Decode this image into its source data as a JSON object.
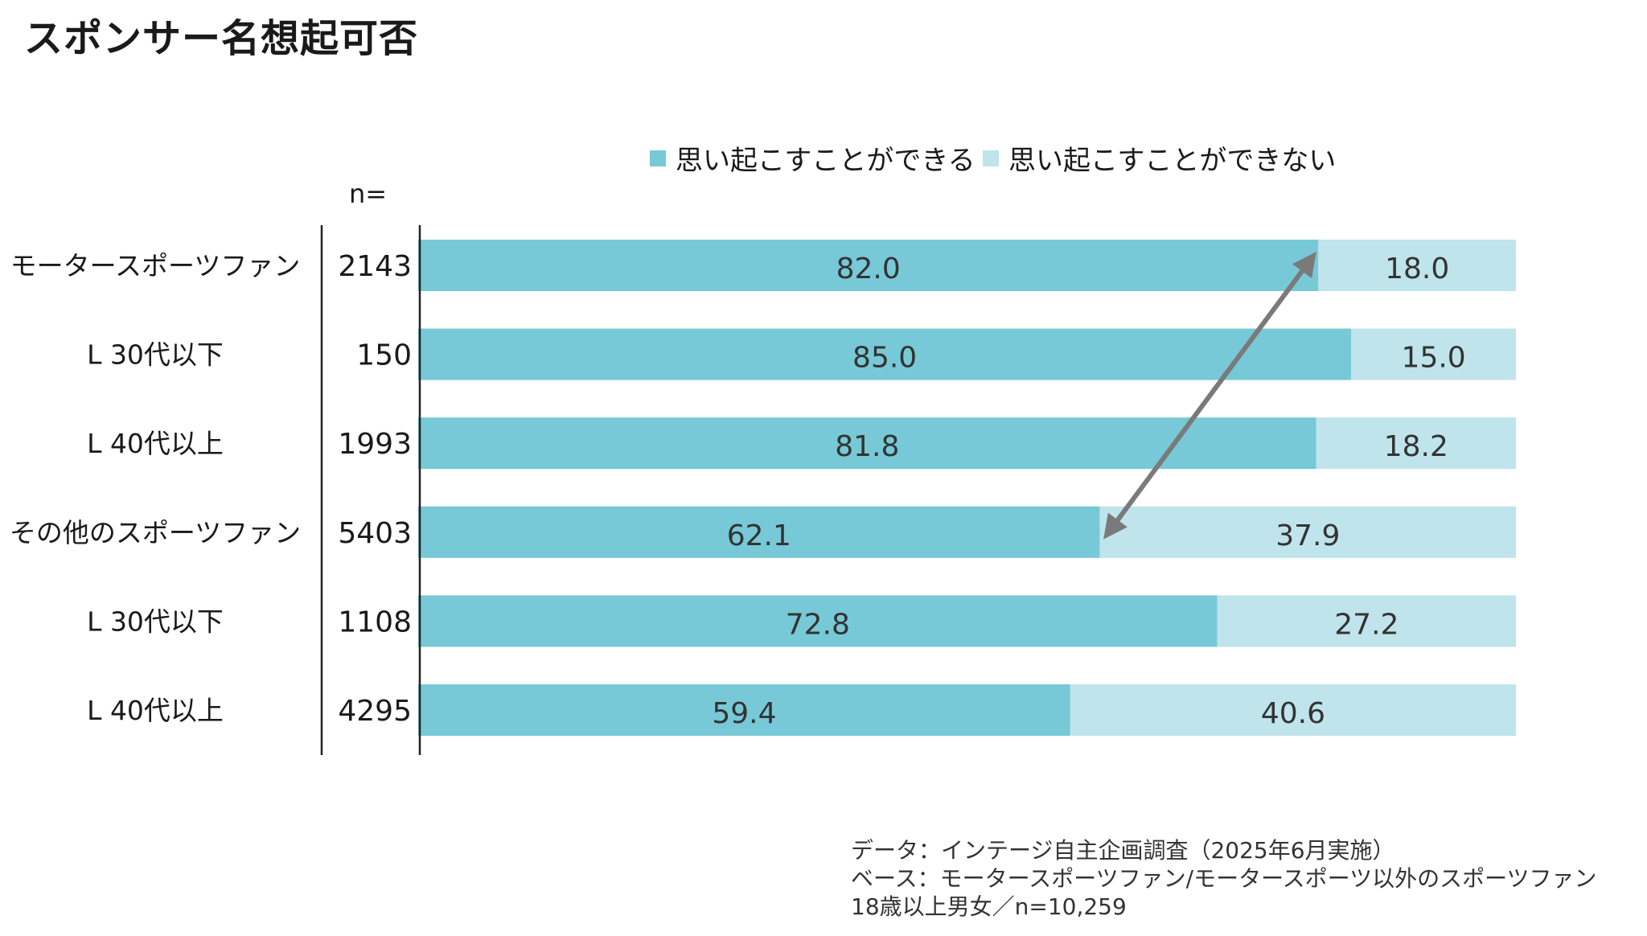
{
  "title": "スポンサー名想起可否",
  "n_header": "n=",
  "footnote": {
    "line1": "データ：インテージ自主企画調査（2025年6月実施）",
    "line2": "ベース：モータースポーツファン/モータースポーツ以外のスポーツファン",
    "line3": "18歳以上男女／n=10,259"
  },
  "colors": {
    "can_recall": "#77c9d7",
    "cannot_recall": "#bfe4eb",
    "arrow": "#7a7a7a"
  },
  "chart_data": {
    "type": "bar",
    "orientation": "horizontal",
    "stacked": true,
    "percent": true,
    "xlim": [
      0,
      100
    ],
    "legend_position": "top",
    "categories": [
      "モータースポーツファン",
      "L 30代以下",
      "L 40代以上",
      "その他のスポーツファン",
      "L 30代以下",
      "L 40代以上"
    ],
    "n": [
      "2143",
      "150",
      "1993",
      "5403",
      "1108",
      "4295"
    ],
    "series": [
      {
        "name": "思い起こすことができる",
        "values": [
          82.0,
          85.0,
          81.8,
          62.1,
          72.8,
          59.4
        ],
        "labels": [
          "82.0",
          "85.0",
          "81.8",
          "62.1",
          "72.8",
          "59.4"
        ]
      },
      {
        "name": "思い起こすことができない",
        "values": [
          18.0,
          15.0,
          18.2,
          37.9,
          27.2,
          40.6
        ],
        "labels": [
          "18.0",
          "15.0",
          "18.2",
          "37.9",
          "27.2",
          "40.6"
        ]
      }
    ],
    "annotation": {
      "type": "double-arrow",
      "from_row": 0,
      "to_row": 3
    }
  }
}
